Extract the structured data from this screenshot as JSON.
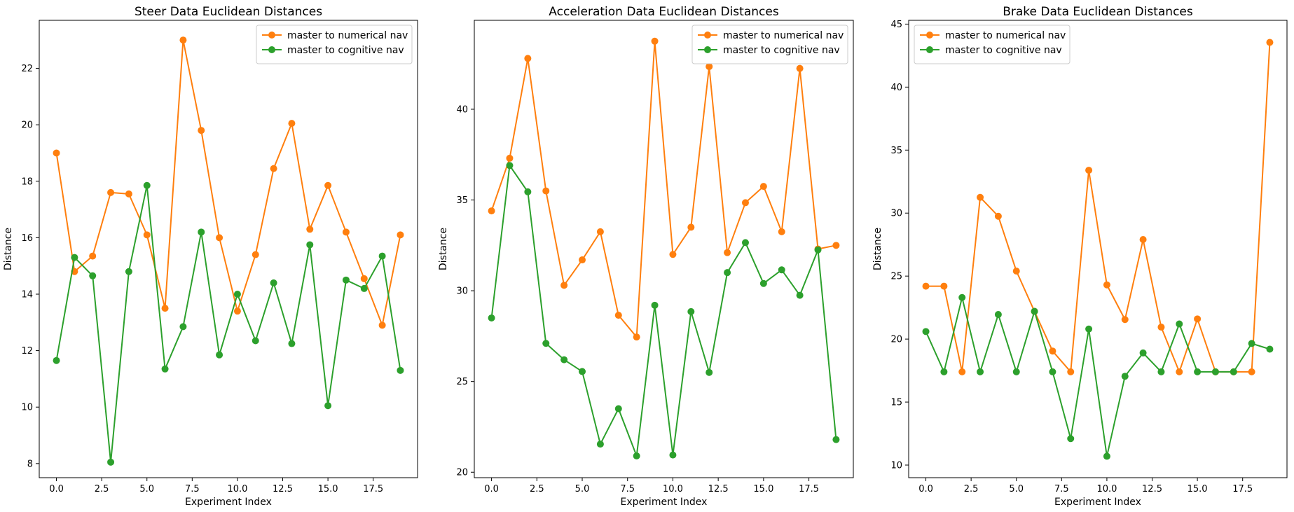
{
  "chart_data": [
    {
      "type": "line",
      "title": "Steer Data Euclidean Distances",
      "xlabel": "Experiment Index",
      "ylabel": "Distance",
      "x": [
        0,
        1,
        2,
        3,
        4,
        5,
        6,
        7,
        8,
        9,
        10,
        11,
        12,
        13,
        14,
        15,
        16,
        17,
        18,
        19
      ],
      "xlim": [
        -0.95,
        19.95
      ],
      "ylim": [
        7.5,
        23.7
      ],
      "xticks": [
        0.0,
        2.5,
        5.0,
        7.5,
        10.0,
        12.5,
        15.0,
        17.5
      ],
      "xtick_labels": [
        "0.0",
        "2.5",
        "5.0",
        "7.5",
        "10.0",
        "12.5",
        "15.0",
        "17.5"
      ],
      "yticks": [
        8,
        10,
        12,
        14,
        16,
        18,
        20,
        22
      ],
      "ytick_labels": [
        "8",
        "10",
        "12",
        "14",
        "16",
        "18",
        "20",
        "22"
      ],
      "legend_position": "top-right",
      "series": [
        {
          "name": "master to numerical nav",
          "color": "#ff7f0e",
          "values": [
            19.0,
            14.8,
            15.35,
            17.6,
            17.55,
            16.1,
            13.5,
            23.0,
            19.8,
            16.0,
            13.4,
            15.4,
            18.45,
            20.05,
            16.3,
            17.85,
            16.2,
            14.55,
            12.9,
            16.1
          ]
        },
        {
          "name": "master to cognitive nav",
          "color": "#2ca02c",
          "values": [
            11.65,
            15.3,
            14.65,
            8.05,
            14.8,
            17.85,
            11.35,
            12.85,
            16.2,
            11.85,
            14.0,
            12.35,
            14.4,
            12.25,
            15.75,
            10.05,
            14.5,
            14.2,
            15.35,
            11.3
          ]
        }
      ]
    },
    {
      "type": "line",
      "title": "Acceleration Data Euclidean Distances",
      "xlabel": "Experiment Index",
      "ylabel": "Distance",
      "x": [
        0,
        1,
        2,
        3,
        4,
        5,
        6,
        7,
        8,
        9,
        10,
        11,
        12,
        13,
        14,
        15,
        16,
        17,
        18,
        19
      ],
      "xlim": [
        -0.95,
        19.95
      ],
      "ylim": [
        19.7,
        44.9
      ],
      "xticks": [
        0.0,
        2.5,
        5.0,
        7.5,
        10.0,
        12.5,
        15.0,
        17.5
      ],
      "xtick_labels": [
        "0.0",
        "2.5",
        "5.0",
        "7.5",
        "10.0",
        "12.5",
        "15.0",
        "17.5"
      ],
      "yticks": [
        20,
        25,
        30,
        35,
        40
      ],
      "ytick_labels": [
        "20",
        "25",
        "30",
        "35",
        "40"
      ],
      "legend_position": "top-right",
      "series": [
        {
          "name": "master to numerical nav",
          "color": "#ff7f0e",
          "values": [
            34.4,
            37.3,
            42.8,
            35.5,
            30.3,
            31.7,
            33.25,
            28.65,
            27.45,
            43.75,
            32.0,
            33.5,
            42.35,
            32.1,
            34.85,
            35.75,
            33.25,
            42.25,
            32.3,
            32.5
          ]
        },
        {
          "name": "master to cognitive nav",
          "color": "#2ca02c",
          "values": [
            28.5,
            36.9,
            35.45,
            27.1,
            26.2,
            25.55,
            21.55,
            23.5,
            20.9,
            29.2,
            20.95,
            28.85,
            25.5,
            31.0,
            32.65,
            30.4,
            31.15,
            29.75,
            32.25,
            21.8
          ]
        }
      ]
    },
    {
      "type": "line",
      "title": "Brake Data Euclidean Distances",
      "xlabel": "Experiment Index",
      "ylabel": "Distance",
      "x": [
        0,
        1,
        2,
        3,
        4,
        5,
        6,
        7,
        8,
        9,
        10,
        11,
        12,
        13,
        14,
        15,
        16,
        17,
        18,
        19
      ],
      "xlim": [
        -0.95,
        19.95
      ],
      "ylim": [
        9.0,
        45.3
      ],
      "xticks": [
        0.0,
        2.5,
        5.0,
        7.5,
        10.0,
        12.5,
        15.0,
        17.5
      ],
      "xtick_labels": [
        "0.0",
        "2.5",
        "5.0",
        "7.5",
        "10.0",
        "12.5",
        "15.0",
        "17.5"
      ],
      "yticks": [
        10,
        15,
        20,
        25,
        30,
        35,
        40,
        45
      ],
      "ytick_labels": [
        "10",
        "15",
        "20",
        "25",
        "30",
        "35",
        "40",
        "45"
      ],
      "legend_position": "top-left",
      "series": [
        {
          "name": "master to numerical nav",
          "color": "#ff7f0e",
          "values": [
            24.2,
            24.2,
            17.4,
            31.25,
            29.75,
            25.4,
            22.2,
            19.05,
            17.4,
            33.4,
            24.3,
            21.55,
            27.9,
            20.95,
            17.4,
            21.6,
            17.4,
            17.4,
            17.4,
            43.55
          ]
        },
        {
          "name": "master to cognitive nav",
          "color": "#2ca02c",
          "values": [
            20.6,
            17.4,
            23.3,
            17.4,
            21.95,
            17.4,
            22.2,
            17.4,
            12.1,
            20.8,
            10.7,
            17.05,
            18.9,
            17.4,
            21.2,
            17.4,
            17.4,
            17.4,
            19.65,
            19.2
          ]
        }
      ]
    }
  ]
}
